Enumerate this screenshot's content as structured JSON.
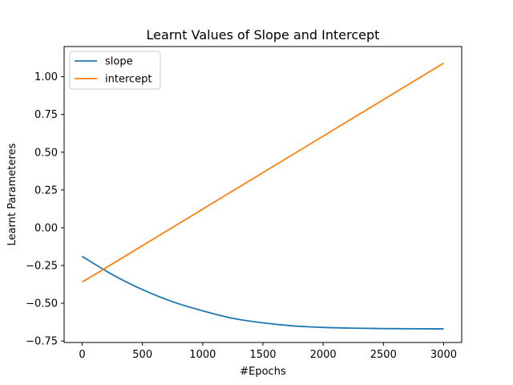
{
  "chart_data": {
    "type": "line",
    "title": "Learnt Values of Slope and Intercept",
    "xlabel": "#Epochs",
    "ylabel": "Learnt Parameteres",
    "xlim": [
      -150,
      3150
    ],
    "ylim": [
      -0.76,
      1.2
    ],
    "xticks": [
      0,
      500,
      1000,
      1500,
      2000,
      2500,
      3000
    ],
    "xtick_labels": [
      "0",
      "500",
      "1000",
      "1500",
      "2000",
      "2500",
      "3000"
    ],
    "yticks": [
      -0.75,
      -0.5,
      -0.25,
      0.0,
      0.25,
      0.5,
      0.75,
      1.0
    ],
    "ytick_labels": [
      "−0.75",
      "−0.50",
      "−0.25",
      "0.00",
      "0.25",
      "0.50",
      "0.75",
      "1.00"
    ],
    "grid": false,
    "legend_position": "top-left",
    "series": [
      {
        "name": "slope",
        "color": "#1f77b4",
        "x": [
          0,
          250,
          500,
          750,
          1000,
          1250,
          1500,
          1750,
          2000,
          2250,
          2500,
          2750,
          3000
        ],
        "y": [
          -0.19,
          -0.31,
          -0.41,
          -0.49,
          -0.55,
          -0.6,
          -0.63,
          -0.65,
          -0.66,
          -0.665,
          -0.668,
          -0.669,
          -0.67
        ]
      },
      {
        "name": "intercept",
        "color": "#ff7f0e",
        "x": [
          0,
          3000
        ],
        "y": [
          -0.36,
          1.09
        ]
      }
    ]
  }
}
